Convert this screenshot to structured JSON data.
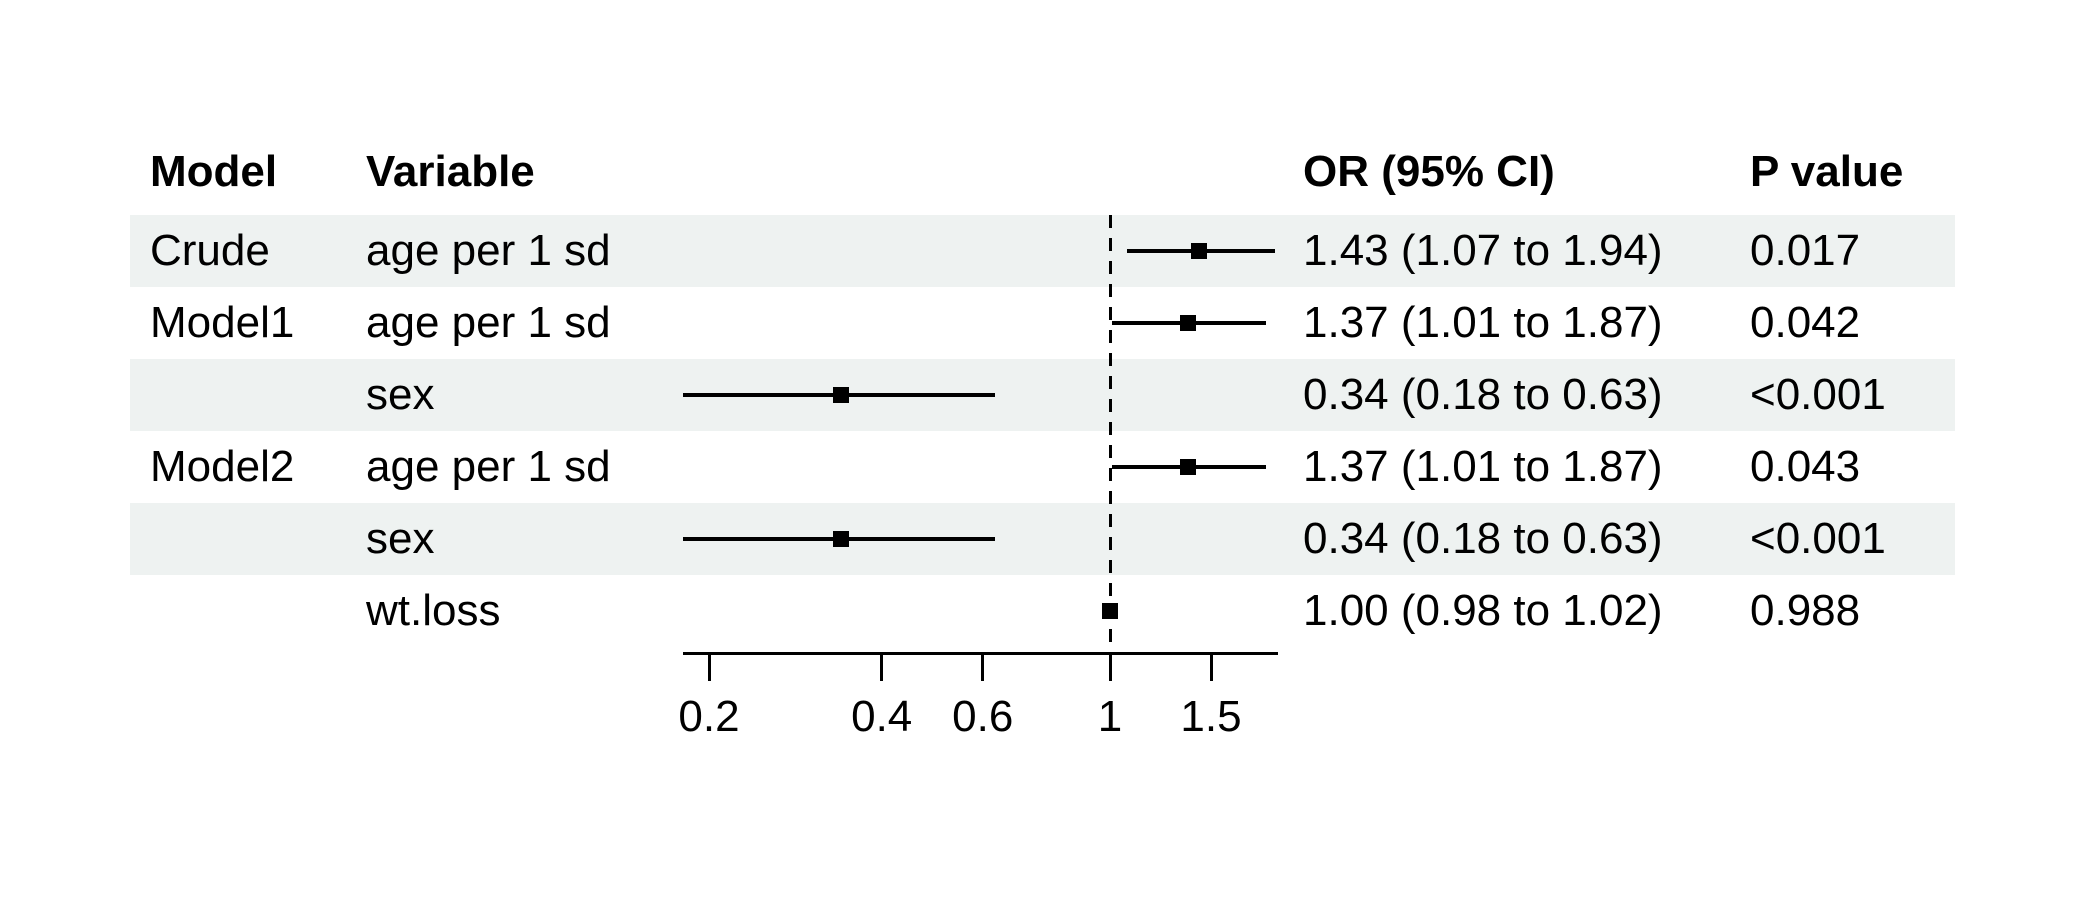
{
  "chart_data": {
    "type": "forest",
    "title": "",
    "headers": {
      "model": "Model",
      "variable": "Variable",
      "or": "OR (95% CI)",
      "p": "P value"
    },
    "rows": [
      {
        "model": "Crude",
        "variable": "age per 1 sd",
        "or": 1.43,
        "ci_low": 1.07,
        "ci_high": 1.94,
        "or_text": "1.43 (1.07 to 1.94)",
        "p_text": "0.017",
        "striped": true
      },
      {
        "model": "Model1",
        "variable": "age per 1 sd",
        "or": 1.37,
        "ci_low": 1.01,
        "ci_high": 1.87,
        "or_text": "1.37 (1.01 to 1.87)",
        "p_text": "0.042",
        "striped": false
      },
      {
        "model": "",
        "variable": "sex",
        "or": 0.34,
        "ci_low": 0.18,
        "ci_high": 0.63,
        "or_text": "0.34 (0.18 to 0.63)",
        "p_text": "<0.001",
        "striped": true
      },
      {
        "model": "Model2",
        "variable": "age per 1 sd",
        "or": 1.37,
        "ci_low": 1.01,
        "ci_high": 1.87,
        "or_text": "1.37 (1.01 to 1.87)",
        "p_text": "0.043",
        "striped": false
      },
      {
        "model": "",
        "variable": "sex",
        "or": 0.34,
        "ci_low": 0.18,
        "ci_high": 0.63,
        "or_text": "0.34 (0.18 to 0.63)",
        "p_text": "<0.001",
        "striped": true
      },
      {
        "model": "",
        "variable": "wt.loss",
        "or": 1.0,
        "ci_low": 0.98,
        "ci_high": 1.02,
        "or_text": "1.00 (0.98 to 1.02)",
        "p_text": "0.988",
        "striped": false
      }
    ],
    "axis": {
      "scale": "log",
      "ticks": [
        0.2,
        0.4,
        0.6,
        1,
        1.5
      ],
      "tick_labels": [
        "0.2",
        "0.4",
        "0.6",
        "1",
        "1.5"
      ],
      "ref_line": 1,
      "xlim": [
        0.18,
        1.96
      ]
    },
    "colors": {
      "stripe": "#eef2f1",
      "text": "#000000",
      "line": "#000000",
      "background": "#ffffff"
    }
  }
}
